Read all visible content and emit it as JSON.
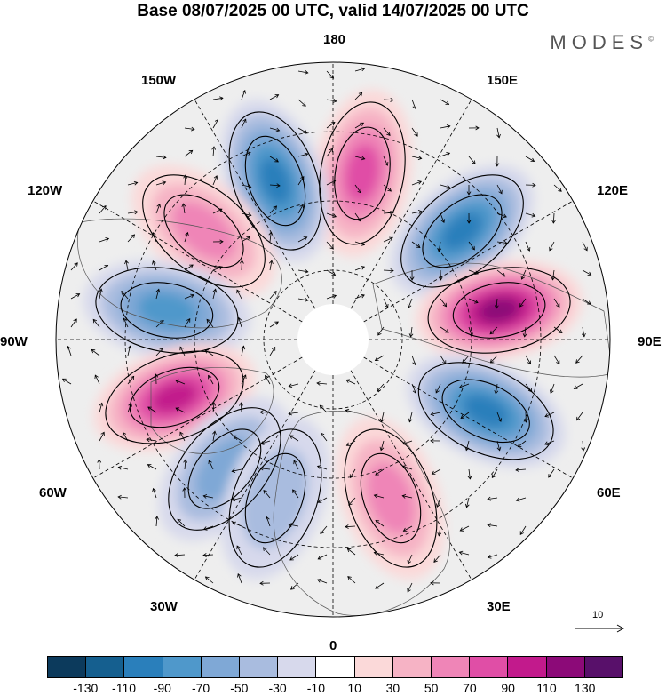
{
  "title": "Base 08/07/2025 00 UTC, valid 14/07/2025 00 UTC",
  "brand": "MODES",
  "brand_mark": "©",
  "longitude_labels": {
    "lon_180": "180",
    "lon_150E": "150E",
    "lon_120E": "120E",
    "lon_90E": "90E",
    "lon_60E": "60E",
    "lon_30E": "30E",
    "lon_0": "0",
    "lon_30W": "30W",
    "lon_60W": "60W",
    "lon_90W": "90W",
    "lon_120W": "120W",
    "lon_150W": "150W"
  },
  "reference_vector_label": "10",
  "colorbar": {
    "colors": [
      "#0c3a5c",
      "#155f8f",
      "#2a7fbb",
      "#4f98cb",
      "#7fa8d6",
      "#a9bcdf",
      "#d7d9ec",
      "#ffffff",
      "#fbd9d9",
      "#f6b3c5",
      "#ef85b7",
      "#e04ea6",
      "#c21a8c",
      "#8c0a78",
      "#58106a"
    ],
    "tick_labels": [
      "-130",
      "-110",
      "-90",
      "-70",
      "-50",
      "-30",
      "-10",
      "10",
      "30",
      "50",
      "70",
      "90",
      "110",
      "130"
    ]
  },
  "anomaly_centers": [
    {
      "lon": 170,
      "sign": "positive",
      "level": 70
    },
    {
      "lon": -160,
      "sign": "negative",
      "level": -90
    },
    {
      "lon": 130,
      "sign": "negative",
      "level": -90
    },
    {
      "lon": -130,
      "sign": "positive",
      "level": 50
    },
    {
      "lon": 100,
      "sign": "positive",
      "level": 110
    },
    {
      "lon": -100,
      "sign": "negative",
      "level": -70
    },
    {
      "lon": 65,
      "sign": "negative",
      "level": -90
    },
    {
      "lon": -70,
      "sign": "positive",
      "level": 90
    },
    {
      "lon": -40,
      "sign": "negative",
      "level": -50
    },
    {
      "lon": 20,
      "sign": "positive",
      "level": 50
    },
    {
      "lon": -20,
      "sign": "negative",
      "level": -30
    }
  ]
}
